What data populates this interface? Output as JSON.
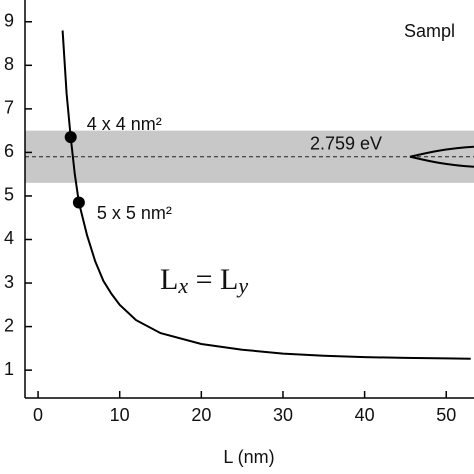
{
  "chart_data": {
    "type": "line",
    "x_label": "L (nm)",
    "legend_text": "Sampl",
    "x": [
      3,
      3.5,
      4,
      4.5,
      5,
      6,
      7,
      8,
      9,
      10,
      12,
      15,
      20,
      25,
      30,
      35,
      40,
      45,
      50,
      53
    ],
    "series": [
      {
        "color": "#000000",
        "values": [
          8.8,
          7.35,
          6.35,
          5.5,
          4.85,
          4.1,
          3.5,
          3.05,
          2.75,
          2.5,
          2.15,
          1.85,
          1.6,
          1.47,
          1.38,
          1.33,
          1.3,
          1.28,
          1.27,
          1.26
        ]
      }
    ],
    "points": [
      {
        "x": 4,
        "y": 6.35,
        "label": "4 x 4 nm²"
      },
      {
        "x": 5,
        "y": 4.85,
        "label": "5 x 5 nm²"
      }
    ],
    "band": [
      5.3,
      6.5
    ],
    "band_color": "#c8c8c8",
    "reference_line": 5.9,
    "reference_label": "2.759 eV",
    "formula": [
      "L",
      "x",
      " = L",
      "y"
    ],
    "xlim": [
      -1.6,
      53.4
    ],
    "ylim": [
      0.36,
      9.5
    ],
    "xticks": [
      0,
      10,
      20,
      30,
      40,
      50
    ],
    "yticks": [
      1,
      2,
      3,
      4,
      5,
      6,
      7,
      8,
      9
    ]
  }
}
